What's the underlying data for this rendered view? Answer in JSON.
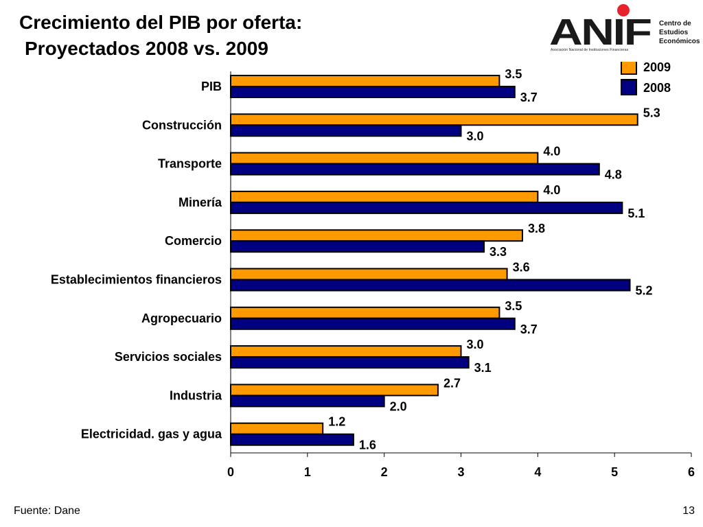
{
  "slide": {
    "title_line1": "Crecimiento del PIB por oferta:",
    "title_line2": "Proyectados 2008 vs. 2009",
    "source": "Fuente: Dane",
    "page_number": "13"
  },
  "logo": {
    "wordmark": "ANIF",
    "side_line1": "Centro de",
    "side_line2": "Estudios",
    "side_line3": "Económicos",
    "subtitle": "Asociación Nacional de Instituciones Financieras",
    "dot_color": "#e8222b"
  },
  "chart_data": {
    "type": "bar",
    "orientation": "horizontal",
    "categories": [
      "PIB",
      "Construcción",
      "Transporte",
      "Minería",
      "Comercio",
      "Establecimientos financieros",
      "Agropecuario",
      "Servicios sociales",
      "Industria",
      "Electricidad. gas y agua"
    ],
    "series": [
      {
        "name": "2009",
        "color": "#ff9900",
        "values": [
          3.5,
          5.3,
          4.0,
          4.0,
          3.8,
          3.6,
          3.5,
          3.0,
          2.7,
          1.2
        ]
      },
      {
        "name": "2008",
        "color": "#000080",
        "values": [
          3.7,
          3.0,
          4.8,
          5.1,
          3.3,
          5.2,
          3.7,
          3.1,
          2.0,
          1.6
        ]
      }
    ],
    "xlim": [
      0,
      6
    ],
    "xticks": [
      "0",
      "1",
      "2",
      "3",
      "4",
      "5",
      "6"
    ],
    "legend_position": "top-right",
    "grid": false
  }
}
